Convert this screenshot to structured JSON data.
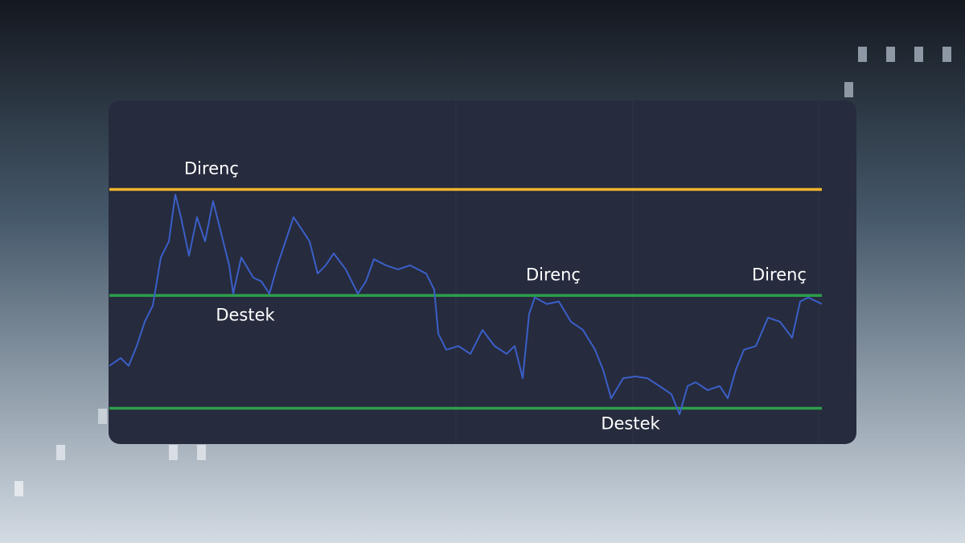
{
  "chart_data": {
    "type": "line",
    "xlim": [
      0,
      886
    ],
    "ylim": [
      0,
      100
    ],
    "x": [
      0,
      14,
      24,
      34,
      44,
      54,
      64,
      74,
      82,
      89,
      99,
      109,
      119,
      129,
      139,
      149,
      154,
      164,
      179,
      189,
      199,
      209,
      219,
      229,
      239,
      249,
      259,
      269,
      279,
      294,
      309,
      319,
      329,
      344,
      359,
      374,
      394,
      404,
      409,
      419,
      434,
      449,
      464,
      479,
      494,
      504,
      514,
      522,
      529,
      544,
      559,
      574,
      589,
      604,
      614,
      624,
      639,
      654,
      669,
      684,
      699,
      709,
      719,
      729,
      744,
      759,
      769,
      779,
      789,
      804,
      819,
      834,
      849,
      859,
      869,
      886
    ],
    "series": [
      {
        "color": "#3b5fc8",
        "values": [
          22.4,
          24.7,
          22.4,
          28.2,
          35.3,
          40,
          54.1,
          58.8,
          72.5,
          65.9,
          54.6,
          65.9,
          58.8,
          70.6,
          61.2,
          51.8,
          43.5,
          54.1,
          48.2,
          47.1,
          43.5,
          51.8,
          58.8,
          65.9,
          62.4,
          58.8,
          49.4,
          51.8,
          55.3,
          50.6,
          43.5,
          47.1,
          53.6,
          51.8,
          50.6,
          51.8,
          49.4,
          44.7,
          31.8,
          27.1,
          28.2,
          25.9,
          32.9,
          28.2,
          25.9,
          28.2,
          18.8,
          37.6,
          42.4,
          40.5,
          41.2,
          35.3,
          32.9,
          27.1,
          21.2,
          12.9,
          18.8,
          19.3,
          18.8,
          16.5,
          14.1,
          8.2,
          16.5,
          17.6,
          15.3,
          16.5,
          12.9,
          21.2,
          27.1,
          28.2,
          36.5,
          35.3,
          30.6,
          41.2,
          42.4,
          40.5
        ]
      }
    ],
    "levels": [
      {
        "value": 74,
        "color": "#f2b42c"
      },
      {
        "value": 43,
        "color": "#2e9e4a"
      },
      {
        "value": 10,
        "color": "#2e9e4a"
      }
    ],
    "annotations": [
      {
        "text": "Direnç",
        "level": 0
      },
      {
        "text": "Destek",
        "level": 1
      },
      {
        "text": "Direnç",
        "level": 1
      },
      {
        "text": "Direnç",
        "level": 1
      },
      {
        "text": "Destek",
        "level": 2
      }
    ]
  }
}
